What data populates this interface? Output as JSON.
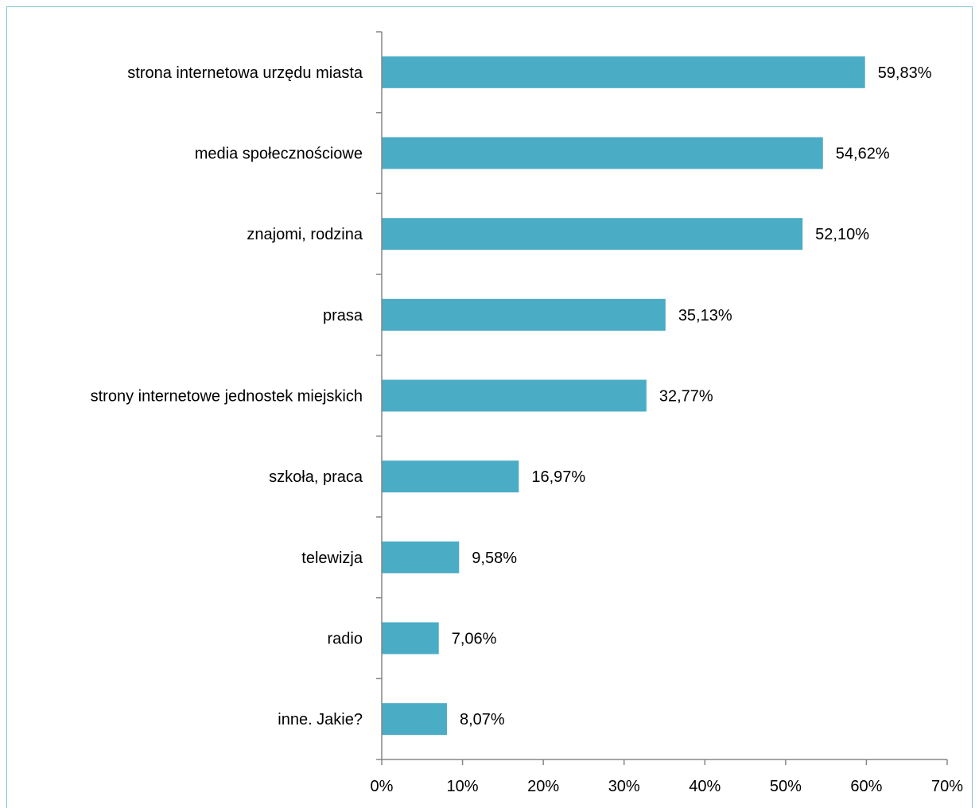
{
  "chart_data": {
    "type": "bar",
    "orientation": "horizontal",
    "categories": [
      "strona internetowa urzędu miasta",
      "media społecznościowe",
      "znajomi, rodzina",
      "prasa",
      "strony internetowe jednostek miejskich",
      "szkoła, praca",
      "telewizja",
      "radio",
      "inne. Jakie?"
    ],
    "values": [
      59.83,
      54.62,
      52.1,
      35.13,
      32.77,
      16.97,
      9.58,
      7.06,
      8.07
    ],
    "value_labels": [
      "59,83%",
      "54,62%",
      "52,10%",
      "35,13%",
      "32,77%",
      "16,97%",
      "9,58%",
      "7,06%",
      "8,07%"
    ],
    "xlim": [
      0,
      70
    ],
    "x_ticks": [
      0,
      10,
      20,
      30,
      40,
      50,
      60,
      70
    ],
    "x_tick_labels": [
      "0%",
      "10%",
      "20%",
      "30%",
      "40%",
      "50%",
      "60%",
      "70%"
    ],
    "title": "",
    "xlabel": "",
    "ylabel": "",
    "grid": false,
    "legend": "none",
    "bar_color": "#4bacc6",
    "axis_color": "#868686",
    "frame_color": "#7fc4cf"
  }
}
